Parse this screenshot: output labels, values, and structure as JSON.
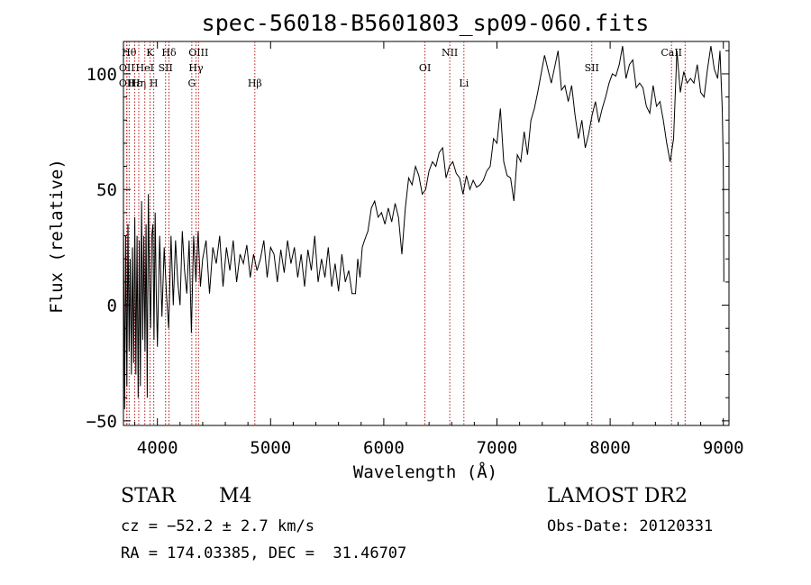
{
  "chart_data": {
    "type": "line",
    "title": "spec-56018-B5601803_sp09-060.fits",
    "xlabel": "Wavelength (Å)",
    "ylabel": "Flux (relative)",
    "xlim": [
      3700,
      9050
    ],
    "ylim": [
      -52,
      114
    ],
    "xticks": [
      4000,
      5000,
      6000,
      7000,
      8000,
      9000
    ],
    "yticks": [
      -50,
      0,
      50,
      100
    ],
    "grid": false,
    "series": [
      {
        "x": [
          3700,
          3710,
          3720,
          3730,
          3740,
          3750,
          3760,
          3770,
          3780,
          3790,
          3800,
          3810,
          3820,
          3830,
          3840,
          3850,
          3860,
          3870,
          3880,
          3890,
          3900,
          3910,
          3920,
          3930,
          3940,
          3950,
          3960,
          3970,
          3980,
          3990,
          4000,
          4020,
          4040,
          4060,
          4080,
          4100,
          4120,
          4140,
          4160,
          4180,
          4200,
          4220,
          4240,
          4260,
          4280,
          4300,
          4320,
          4340,
          4360,
          4380,
          4400,
          4430,
          4460,
          4490,
          4520,
          4550,
          4580,
          4610,
          4640,
          4670,
          4700,
          4730,
          4760,
          4790,
          4820,
          4850,
          4880,
          4910,
          4940,
          4970,
          5000,
          5030,
          5060,
          5090,
          5120,
          5150,
          5180,
          5210,
          5240,
          5270,
          5300,
          5330,
          5360,
          5390,
          5420,
          5450,
          5480,
          5510,
          5540,
          5570,
          5600,
          5630,
          5660,
          5690,
          5720,
          5750,
          5770,
          5790,
          5810,
          5830,
          5860,
          5890,
          5920,
          5950,
          5980,
          6010,
          6040,
          6070,
          6100,
          6130,
          6160,
          6190,
          6220,
          6250,
          6280,
          6310,
          6340,
          6370,
          6400,
          6430,
          6460,
          6490,
          6520,
          6550,
          6580,
          6610,
          6640,
          6670,
          6700,
          6730,
          6760,
          6790,
          6820,
          6850,
          6880,
          6910,
          6940,
          6970,
          7000,
          7030,
          7060,
          7090,
          7120,
          7150,
          7180,
          7210,
          7240,
          7270,
          7300,
          7330,
          7360,
          7390,
          7420,
          7450,
          7480,
          7510,
          7540,
          7570,
          7600,
          7630,
          7660,
          7690,
          7720,
          7750,
          7780,
          7810,
          7840,
          7870,
          7900,
          7930,
          7960,
          7990,
          8020,
          8050,
          8080,
          8110,
          8140,
          8170,
          8200,
          8230,
          8260,
          8290,
          8320,
          8350,
          8380,
          8410,
          8440,
          8470,
          8500,
          8530,
          8560,
          8590,
          8620,
          8650,
          8680,
          8710,
          8740,
          8770,
          8800,
          8830,
          8860,
          8890,
          8920,
          8950,
          8970,
          8990,
          9000,
          9005
        ],
        "y": [
          40,
          -45,
          30,
          -35,
          35,
          -20,
          20,
          -30,
          25,
          -25,
          38,
          -30,
          30,
          -40,
          28,
          -35,
          45,
          -15,
          30,
          -20,
          35,
          -40,
          48,
          10,
          -10,
          30,
          35,
          -15,
          40,
          5,
          -18,
          30,
          -5,
          25,
          5,
          -10,
          30,
          0,
          28,
          10,
          0,
          32,
          15,
          5,
          28,
          -12,
          30,
          10,
          32,
          8,
          20,
          28,
          5,
          25,
          18,
          30,
          8,
          25,
          15,
          28,
          10,
          22,
          18,
          26,
          12,
          22,
          15,
          20,
          28,
          12,
          25,
          22,
          10,
          24,
          14,
          28,
          18,
          25,
          12,
          22,
          8,
          24,
          15,
          30,
          10,
          20,
          12,
          25,
          8,
          18,
          6,
          22,
          10,
          15,
          5,
          5,
          20,
          12,
          25,
          28,
          32,
          42,
          45,
          38,
          40,
          35,
          42,
          36,
          44,
          38,
          22,
          42,
          55,
          52,
          60,
          56,
          48,
          50,
          58,
          62,
          60,
          66,
          68,
          55,
          60,
          62,
          57,
          55,
          48,
          56,
          50,
          54,
          51,
          52,
          54,
          58,
          60,
          72,
          70,
          85,
          62,
          56,
          55,
          45,
          65,
          62,
          75,
          65,
          80,
          85,
          92,
          100,
          108,
          102,
          96,
          103,
          110,
          93,
          95,
          88,
          95,
          82,
          72,
          80,
          68,
          74,
          82,
          88,
          79,
          85,
          90,
          96,
          100,
          99,
          104,
          112,
          98,
          104,
          106,
          94,
          96,
          94,
          86,
          83,
          95,
          86,
          88,
          80,
          70,
          62,
          72,
          110,
          92,
          101,
          96,
          98,
          96,
          104,
          92,
          90,
          102,
          112,
          102,
          98,
          110,
          85,
          60,
          10
        ]
      }
    ],
    "lines": [
      {
        "x": 3750,
        "label": "Hθ",
        "row": 0
      },
      {
        "x": 3730,
        "label": "OII",
        "row": 1
      },
      {
        "x": 3730,
        "label": "OII",
        "row": 2
      },
      {
        "x": 3800,
        "label": "Hε",
        "row": 2
      },
      {
        "x": 3835,
        "label": "Hη",
        "row": 2
      },
      {
        "x": 3889,
        "label": "HeI",
        "row": 1
      },
      {
        "x": 3934,
        "label": "K",
        "row": 0
      },
      {
        "x": 3968,
        "label": "H",
        "row": 2
      },
      {
        "x": 4072,
        "label": "SII",
        "row": 1
      },
      {
        "x": 4102,
        "label": "Hδ",
        "row": 0
      },
      {
        "x": 4304,
        "label": "G",
        "row": 2
      },
      {
        "x": 4341,
        "label": "Hγ",
        "row": 1
      },
      {
        "x": 4363,
        "label": "OIII",
        "row": 0
      },
      {
        "x": 4861,
        "label": "Hβ",
        "row": 2
      },
      {
        "x": 6364,
        "label": "OI",
        "row": 1
      },
      {
        "x": 6583,
        "label": "NII",
        "row": 0
      },
      {
        "x": 6708,
        "label": "Li",
        "row": 2
      },
      {
        "x": 7838,
        "label": "SII",
        "row": 1
      },
      {
        "x": 8542,
        "label": "CaII",
        "row": 0
      },
      {
        "x": 8662,
        "label": "",
        "row": 0
      }
    ]
  },
  "info": {
    "object_class": "STAR",
    "subclass": "M4",
    "survey": "LAMOST DR2",
    "cz": "cz = −52.2 ± 2.7 km/s",
    "obs_date": "Obs-Date: 20120331",
    "coords": "RA = 174.03385, DEC =  31.46707"
  }
}
